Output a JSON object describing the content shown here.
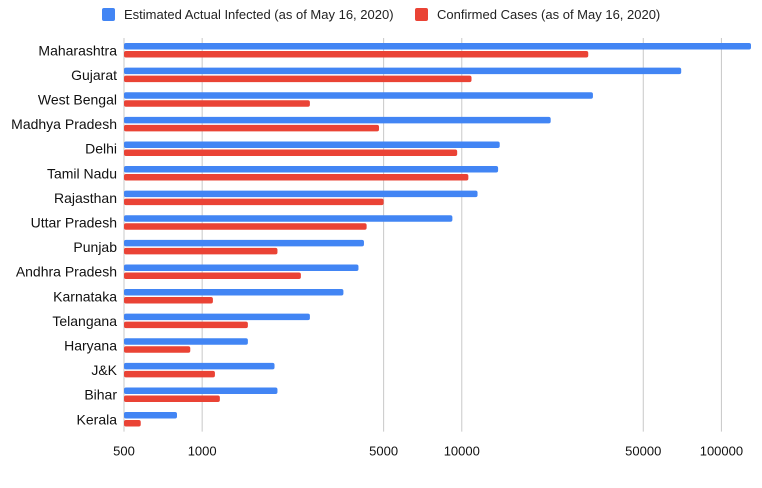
{
  "chart_data": {
    "type": "bar",
    "orientation": "horizontal",
    "x_scale": "log",
    "xlim": [
      500,
      130000
    ],
    "xticks": [
      500,
      1000,
      5000,
      10000,
      50000,
      100000
    ],
    "xtick_labels": [
      "500",
      "1000",
      "5000",
      "10000",
      "50000",
      "100000"
    ],
    "grid": true,
    "legend_position": "top",
    "categories": [
      "Maharashtra",
      "Gujarat",
      "West Bengal",
      "Madhya Pradesh",
      "Delhi",
      "Tamil Nadu",
      "Rajasthan",
      "Uttar Pradesh",
      "Punjab",
      "Andhra Pradesh",
      "Karnataka",
      "Telangana",
      "Haryana",
      "J&K",
      "Bihar",
      "Kerala"
    ],
    "series": [
      {
        "name": "Estimated Actual Infected (as of May 16, 2020)",
        "color": "#4285f4",
        "values": [
          130000,
          70000,
          32000,
          22000,
          14000,
          13800,
          11500,
          9200,
          4200,
          4000,
          3500,
          2600,
          1500,
          1900,
          1950,
          800
        ]
      },
      {
        "name": "Confirmed Cases (as of May 16, 2020)",
        "color": "#ea4335",
        "values": [
          30700,
          10900,
          2600,
          4800,
          9600,
          10600,
          5000,
          4300,
          1950,
          2400,
          1100,
          1500,
          900,
          1120,
          1170,
          580
        ]
      }
    ]
  }
}
